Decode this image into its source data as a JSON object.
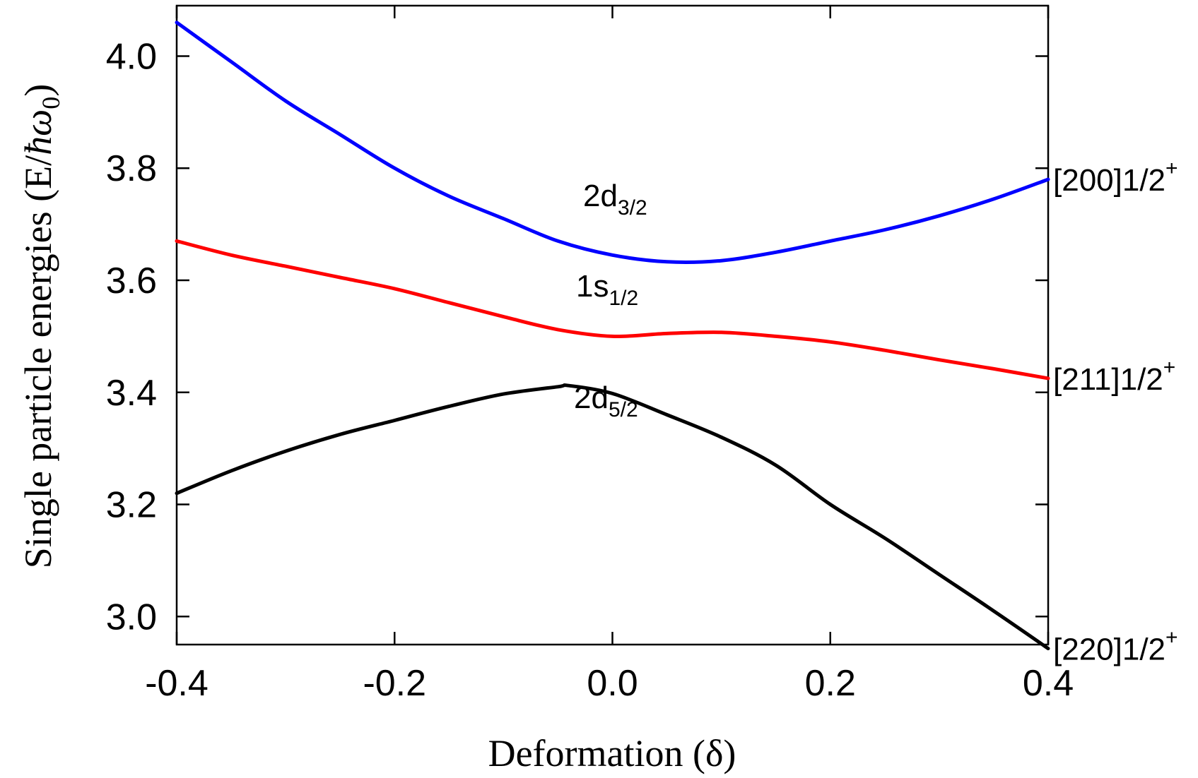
{
  "chart_data": {
    "type": "line",
    "title": "",
    "xlabel": "Deformation (δ)",
    "ylabel": "Single particle energies (E/",
    "ylabel_symbol": "ħω",
    "ylabel_sub": "0",
    "ylabel_close": ")",
    "xlim": [
      -0.4,
      0.4
    ],
    "ylim": [
      2.95,
      4.09
    ],
    "xticks": [
      -0.4,
      -0.2,
      0.0,
      0.2,
      0.4
    ],
    "xtick_labels": [
      "-0.4",
      "-0.2",
      "0.0",
      "0.2",
      "0.4"
    ],
    "yticks": [
      3.0,
      3.2,
      3.4,
      3.6,
      3.8,
      4.0
    ],
    "ytick_labels": [
      "3.0",
      "3.2",
      "3.4",
      "3.6",
      "3.8",
      "4.0"
    ],
    "grid": false,
    "legend": "none",
    "series": [
      {
        "key": "blue",
        "color": "#0000ff",
        "annotation_main": "2d",
        "annotation_sub": "3/2",
        "end_label_main": "[200]1/2",
        "end_label_sup": "+",
        "x": [
          -0.4,
          -0.35,
          -0.3,
          -0.25,
          -0.2,
          -0.15,
          -0.1,
          -0.05,
          0.0,
          0.05,
          0.1,
          0.15,
          0.2,
          0.25,
          0.3,
          0.35,
          0.4
        ],
        "y": [
          4.06,
          3.99,
          3.92,
          3.86,
          3.8,
          3.75,
          3.71,
          3.67,
          3.645,
          3.633,
          3.635,
          3.65,
          3.67,
          3.69,
          3.715,
          3.745,
          3.78
        ]
      },
      {
        "key": "red",
        "color": "#ff0000",
        "annotation_main": "1s",
        "annotation_sub": "1/2",
        "end_label_main": "[211]1/2",
        "end_label_sup": "+",
        "x": [
          -0.4,
          -0.35,
          -0.3,
          -0.25,
          -0.2,
          -0.15,
          -0.1,
          -0.05,
          0.0,
          0.05,
          0.1,
          0.15,
          0.2,
          0.25,
          0.3,
          0.35,
          0.4
        ],
        "y": [
          3.67,
          3.645,
          3.625,
          3.605,
          3.585,
          3.56,
          3.535,
          3.512,
          3.5,
          3.505,
          3.507,
          3.5,
          3.49,
          3.475,
          3.458,
          3.442,
          3.425
        ]
      },
      {
        "key": "black",
        "color": "#000000",
        "annotation_main": "2d",
        "annotation_sub": "5/2",
        "end_label_main": "[220]1/2",
        "end_label_sup": "+",
        "x": [
          -0.4,
          -0.35,
          -0.3,
          -0.25,
          -0.2,
          -0.15,
          -0.1,
          -0.05,
          -0.04,
          0.0,
          0.05,
          0.1,
          0.15,
          0.2,
          0.25,
          0.3,
          0.35,
          0.4
        ],
        "y": [
          3.22,
          3.26,
          3.295,
          3.325,
          3.35,
          3.375,
          3.397,
          3.41,
          3.412,
          3.398,
          3.36,
          3.32,
          3.27,
          3.2,
          3.14,
          3.075,
          3.01,
          2.943
        ]
      }
    ]
  }
}
